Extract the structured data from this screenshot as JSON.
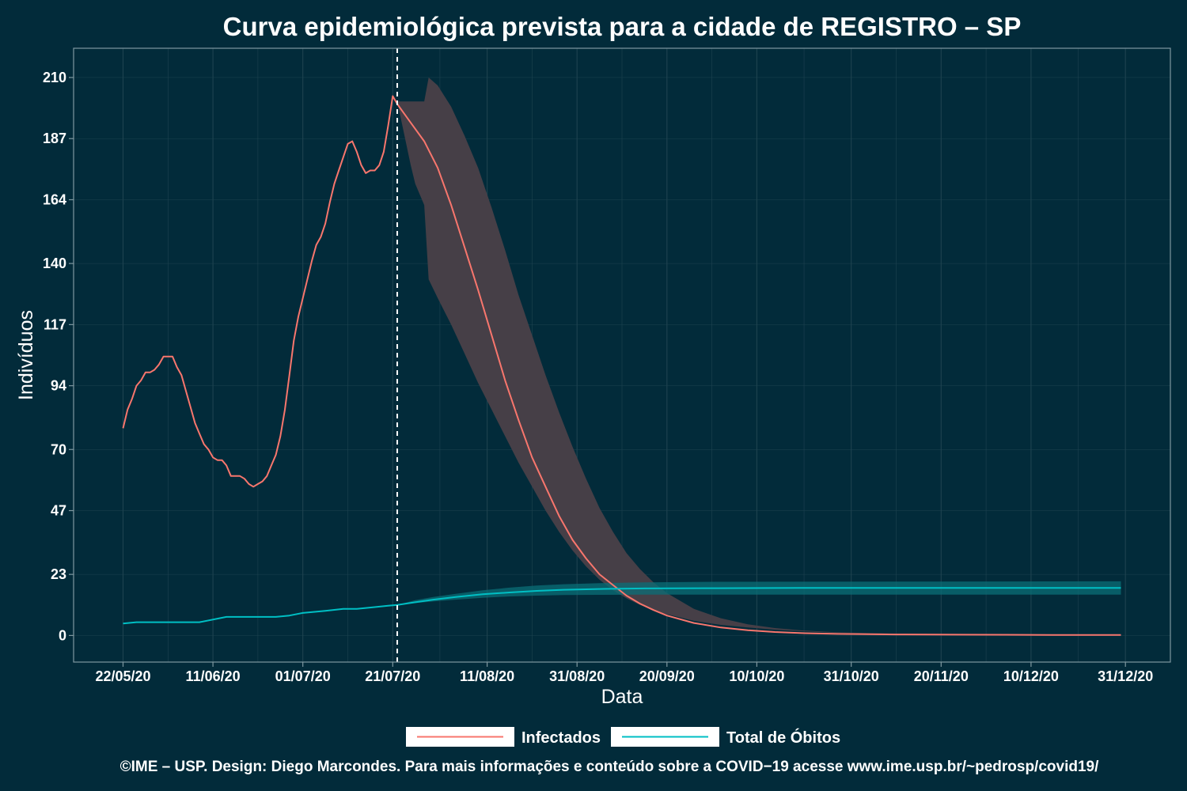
{
  "chart_data": {
    "type": "line",
    "title": "Curva epidemiológica prevista para a cidade de REGISTRO – SP",
    "xlabel": "Data",
    "ylabel": "Indivíduos",
    "x_ticks": [
      "22/05/20",
      "11/06/20",
      "01/07/20",
      "21/07/20",
      "11/08/20",
      "31/08/20",
      "20/09/20",
      "10/10/20",
      "31/10/20",
      "20/11/20",
      "10/12/20",
      "31/12/20"
    ],
    "x_tick_dates": [
      "2020-05-22",
      "2020-06-11",
      "2020-07-01",
      "2020-07-21",
      "2020-08-11",
      "2020-08-31",
      "2020-09-20",
      "2020-10-10",
      "2020-10-31",
      "2020-11-20",
      "2020-12-10",
      "2020-12-31"
    ],
    "y_ticks": [
      0,
      23,
      47,
      70,
      94,
      117,
      140,
      164,
      187,
      210
    ],
    "ylim": [
      -10,
      221
    ],
    "xlim": [
      "2020-05-11",
      "2021-01-10"
    ],
    "prediction_start": "2020-07-22",
    "grid": true,
    "legend_position": "bottom",
    "series": [
      {
        "name": "Infectados",
        "color": "#f8766d",
        "observed": [
          [
            "2020-05-22",
            78
          ],
          [
            "2020-05-23",
            85
          ],
          [
            "2020-05-24",
            89
          ],
          [
            "2020-05-25",
            94
          ],
          [
            "2020-05-26",
            96
          ],
          [
            "2020-05-27",
            99
          ],
          [
            "2020-05-28",
            99
          ],
          [
            "2020-05-29",
            100
          ],
          [
            "2020-05-30",
            102
          ],
          [
            "2020-05-31",
            105
          ],
          [
            "2020-06-01",
            105
          ],
          [
            "2020-06-02",
            105
          ],
          [
            "2020-06-03",
            101
          ],
          [
            "2020-06-04",
            98
          ],
          [
            "2020-06-05",
            92
          ],
          [
            "2020-06-06",
            86
          ],
          [
            "2020-06-07",
            80
          ],
          [
            "2020-06-08",
            76
          ],
          [
            "2020-06-09",
            72
          ],
          [
            "2020-06-10",
            70
          ],
          [
            "2020-06-11",
            67
          ],
          [
            "2020-06-12",
            66
          ],
          [
            "2020-06-13",
            66
          ],
          [
            "2020-06-14",
            64
          ],
          [
            "2020-06-15",
            60
          ],
          [
            "2020-06-16",
            60
          ],
          [
            "2020-06-17",
            60
          ],
          [
            "2020-06-18",
            59
          ],
          [
            "2020-06-19",
            57
          ],
          [
            "2020-06-20",
            56
          ],
          [
            "2020-06-21",
            57
          ],
          [
            "2020-06-22",
            58
          ],
          [
            "2020-06-23",
            60
          ],
          [
            "2020-06-24",
            64
          ],
          [
            "2020-06-25",
            68
          ],
          [
            "2020-06-26",
            75
          ],
          [
            "2020-06-27",
            85
          ],
          [
            "2020-06-28",
            98
          ],
          [
            "2020-06-29",
            111
          ],
          [
            "2020-06-30",
            120
          ],
          [
            "2020-07-01",
            127
          ],
          [
            "2020-07-02",
            134
          ],
          [
            "2020-07-03",
            141
          ],
          [
            "2020-07-04",
            147
          ],
          [
            "2020-07-05",
            150
          ],
          [
            "2020-07-06",
            155
          ],
          [
            "2020-07-07",
            163
          ],
          [
            "2020-07-08",
            170
          ],
          [
            "2020-07-09",
            175
          ],
          [
            "2020-07-10",
            180
          ],
          [
            "2020-07-11",
            185
          ],
          [
            "2020-07-12",
            186
          ],
          [
            "2020-07-13",
            182
          ],
          [
            "2020-07-14",
            177
          ],
          [
            "2020-07-15",
            174
          ],
          [
            "2020-07-16",
            175
          ],
          [
            "2020-07-17",
            175
          ],
          [
            "2020-07-18",
            177
          ],
          [
            "2020-07-19",
            182
          ],
          [
            "2020-07-20",
            192
          ],
          [
            "2020-07-21",
            203
          ],
          [
            "2020-07-22",
            200
          ]
        ],
        "predicted": [
          [
            "2020-07-22",
            200
          ],
          [
            "2020-07-25",
            193
          ],
          [
            "2020-07-28",
            186
          ],
          [
            "2020-07-31",
            176
          ],
          [
            "2020-08-03",
            162
          ],
          [
            "2020-08-06",
            146
          ],
          [
            "2020-08-09",
            130
          ],
          [
            "2020-08-12",
            113
          ],
          [
            "2020-08-15",
            96
          ],
          [
            "2020-08-18",
            81
          ],
          [
            "2020-08-21",
            67
          ],
          [
            "2020-08-24",
            56
          ],
          [
            "2020-08-27",
            45
          ],
          [
            "2020-08-30",
            36
          ],
          [
            "2020-09-02",
            29
          ],
          [
            "2020-09-05",
            23
          ],
          [
            "2020-09-08",
            19
          ],
          [
            "2020-09-11",
            15
          ],
          [
            "2020-09-14",
            12
          ],
          [
            "2020-09-17",
            9.6
          ],
          [
            "2020-09-20",
            7.5
          ],
          [
            "2020-09-26",
            4.7
          ],
          [
            "2020-10-02",
            3
          ],
          [
            "2020-10-08",
            2
          ],
          [
            "2020-10-14",
            1.3
          ],
          [
            "2020-10-20",
            0.9
          ],
          [
            "2020-10-28",
            0.6
          ],
          [
            "2020-11-10",
            0.4
          ],
          [
            "2020-11-25",
            0.3
          ],
          [
            "2020-12-15",
            0.2
          ],
          [
            "2020-12-30",
            0.2
          ]
        ],
        "band": [
          [
            "2020-07-22",
            201,
            201
          ],
          [
            "2020-07-25",
            201,
            177
          ],
          [
            "2020-07-26",
            201,
            170
          ],
          [
            "2020-07-27",
            201,
            166
          ],
          [
            "2020-07-28",
            201,
            162
          ],
          [
            "2020-07-29",
            210,
            134
          ],
          [
            "2020-07-31",
            207,
            127
          ],
          [
            "2020-08-03",
            199,
            117
          ],
          [
            "2020-08-06",
            188,
            106
          ],
          [
            "2020-08-09",
            176,
            95
          ],
          [
            "2020-08-12",
            161,
            85
          ],
          [
            "2020-08-15",
            145,
            75
          ],
          [
            "2020-08-18",
            128,
            65
          ],
          [
            "2020-08-21",
            113,
            56
          ],
          [
            "2020-08-24",
            98,
            47
          ],
          [
            "2020-08-27",
            84,
            39
          ],
          [
            "2020-08-30",
            71,
            32
          ],
          [
            "2020-09-02",
            59,
            26
          ],
          [
            "2020-09-05",
            48,
            21
          ],
          [
            "2020-09-08",
            39,
            17
          ],
          [
            "2020-09-11",
            31,
            14
          ],
          [
            "2020-09-14",
            25,
            11.5
          ],
          [
            "2020-09-17",
            20,
            9.5
          ],
          [
            "2020-09-20",
            16,
            8
          ],
          [
            "2020-09-26",
            10,
            5.5
          ],
          [
            "2020-10-02",
            6.5,
            4
          ],
          [
            "2020-10-08",
            4.2,
            3
          ],
          [
            "2020-10-14",
            2.8,
            2.2
          ],
          [
            "2020-10-20",
            1.9,
            1.6
          ],
          [
            "2020-10-28",
            1.2,
            1
          ],
          [
            "2020-11-10",
            0.7,
            0.6
          ],
          [
            "2020-12-30",
            0.3,
            0.2
          ]
        ]
      },
      {
        "name": "Total de Óbitos",
        "color": "#00bfc4",
        "observed": [
          [
            "2020-05-22",
            4.5
          ],
          [
            "2020-05-25",
            5
          ],
          [
            "2020-06-08",
            5
          ],
          [
            "2020-06-14",
            7
          ],
          [
            "2020-06-25",
            7
          ],
          [
            "2020-06-28",
            7.5
          ],
          [
            "2020-07-01",
            8.5
          ],
          [
            "2020-07-06",
            9.3
          ],
          [
            "2020-07-10",
            10
          ],
          [
            "2020-07-13",
            10
          ],
          [
            "2020-07-17",
            10.7
          ],
          [
            "2020-07-20",
            11.2
          ],
          [
            "2020-07-22",
            11.5
          ]
        ],
        "predicted": [
          [
            "2020-07-22",
            11.5
          ],
          [
            "2020-07-26",
            12.5
          ],
          [
            "2020-07-30",
            13.5
          ],
          [
            "2020-08-04",
            14.5
          ],
          [
            "2020-08-10",
            15.5
          ],
          [
            "2020-08-16",
            16.2
          ],
          [
            "2020-08-22",
            16.8
          ],
          [
            "2020-08-28",
            17.2
          ],
          [
            "2020-09-05",
            17.5
          ],
          [
            "2020-09-15",
            17.7
          ],
          [
            "2020-10-01",
            17.8
          ],
          [
            "2020-10-20",
            17.9
          ],
          [
            "2020-12-30",
            17.9
          ]
        ],
        "band": [
          [
            "2020-07-22",
            11.5,
            11.5
          ],
          [
            "2020-07-26",
            13.3,
            12.2
          ],
          [
            "2020-07-30",
            14.5,
            12.8
          ],
          [
            "2020-08-04",
            15.7,
            13.5
          ],
          [
            "2020-08-10",
            17,
            14.2
          ],
          [
            "2020-08-16",
            18,
            14.7
          ],
          [
            "2020-08-22",
            18.8,
            15
          ],
          [
            "2020-08-28",
            19.3,
            15.2
          ],
          [
            "2020-09-05",
            19.7,
            15.3
          ],
          [
            "2020-09-15",
            20,
            15.4
          ],
          [
            "2020-10-01",
            20.2,
            15.4
          ],
          [
            "2020-12-30",
            20.4,
            15.4
          ]
        ]
      }
    ]
  },
  "caption": "©IME – USP. Design: Diego Marcondes. Para mais informações e conteúdo sobre a COVID−19 acesse www.ime.usp.br/~pedrosp/covid19/",
  "colors": {
    "background": "#022b3a",
    "grid": "#1e4350",
    "band_infectados": "#463f47",
    "band_obitos": "#0b6f77"
  }
}
